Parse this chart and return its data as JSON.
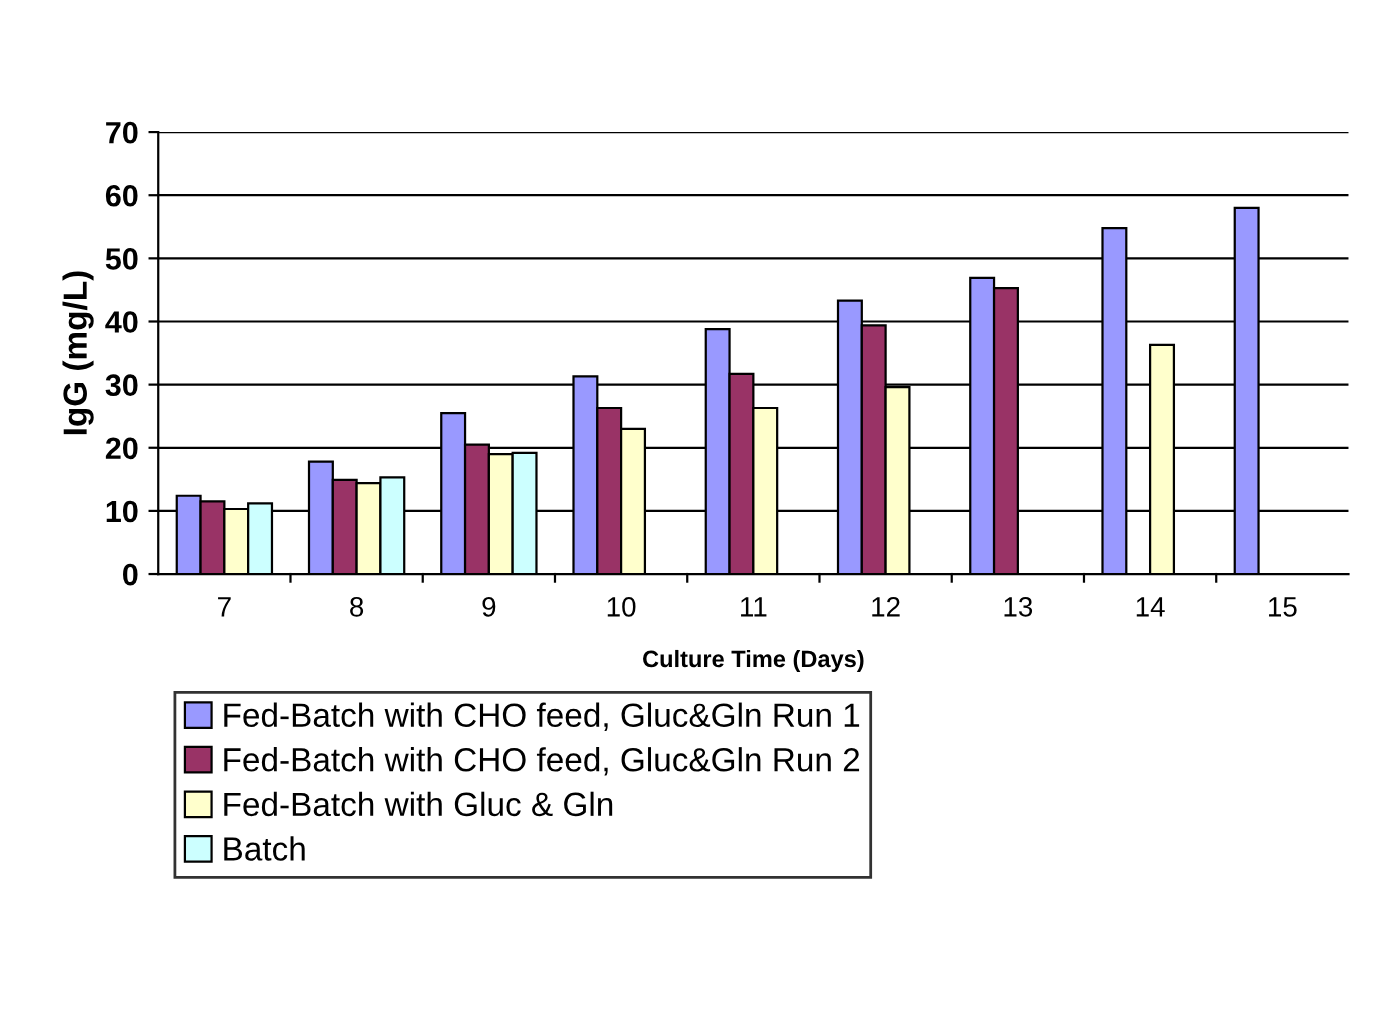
{
  "chart_data": {
    "type": "bar",
    "xlabel": "Culture Time (Days)",
    "ylabel": "IgG (mg/L)",
    "categories": [
      "7",
      "8",
      "9",
      "10",
      "11",
      "12",
      "13",
      "14",
      "15"
    ],
    "series": [
      {
        "name": "Fed-Batch with CHO feed, Gluc&Gln Run 1",
        "color": "#9999ff",
        "values": [
          12.4,
          17.8,
          25.5,
          31.3,
          38.8,
          43.3,
          46.9,
          54.8,
          58.0
        ]
      },
      {
        "name": "Fed-Batch with CHO feed, Gluc&Gln Run 2",
        "color": "#993366",
        "values": [
          11.5,
          14.9,
          20.5,
          26.3,
          31.7,
          39.4,
          45.3,
          null,
          null
        ]
      },
      {
        "name": "Fed-Batch with Gluc & Gln",
        "color": "#ffffcc",
        "values": [
          10.3,
          14.4,
          19.0,
          23.0,
          26.3,
          29.6,
          null,
          36.3,
          null
        ]
      },
      {
        "name": "Batch",
        "color": "#ccffff",
        "values": [
          11.2,
          15.3,
          19.2,
          null,
          null,
          null,
          null,
          null,
          null
        ]
      }
    ],
    "ylim": [
      0,
      70
    ],
    "yticks": [
      0,
      10,
      20,
      30,
      40,
      50,
      60,
      70
    ],
    "grid": "y",
    "legend": "bottom"
  }
}
